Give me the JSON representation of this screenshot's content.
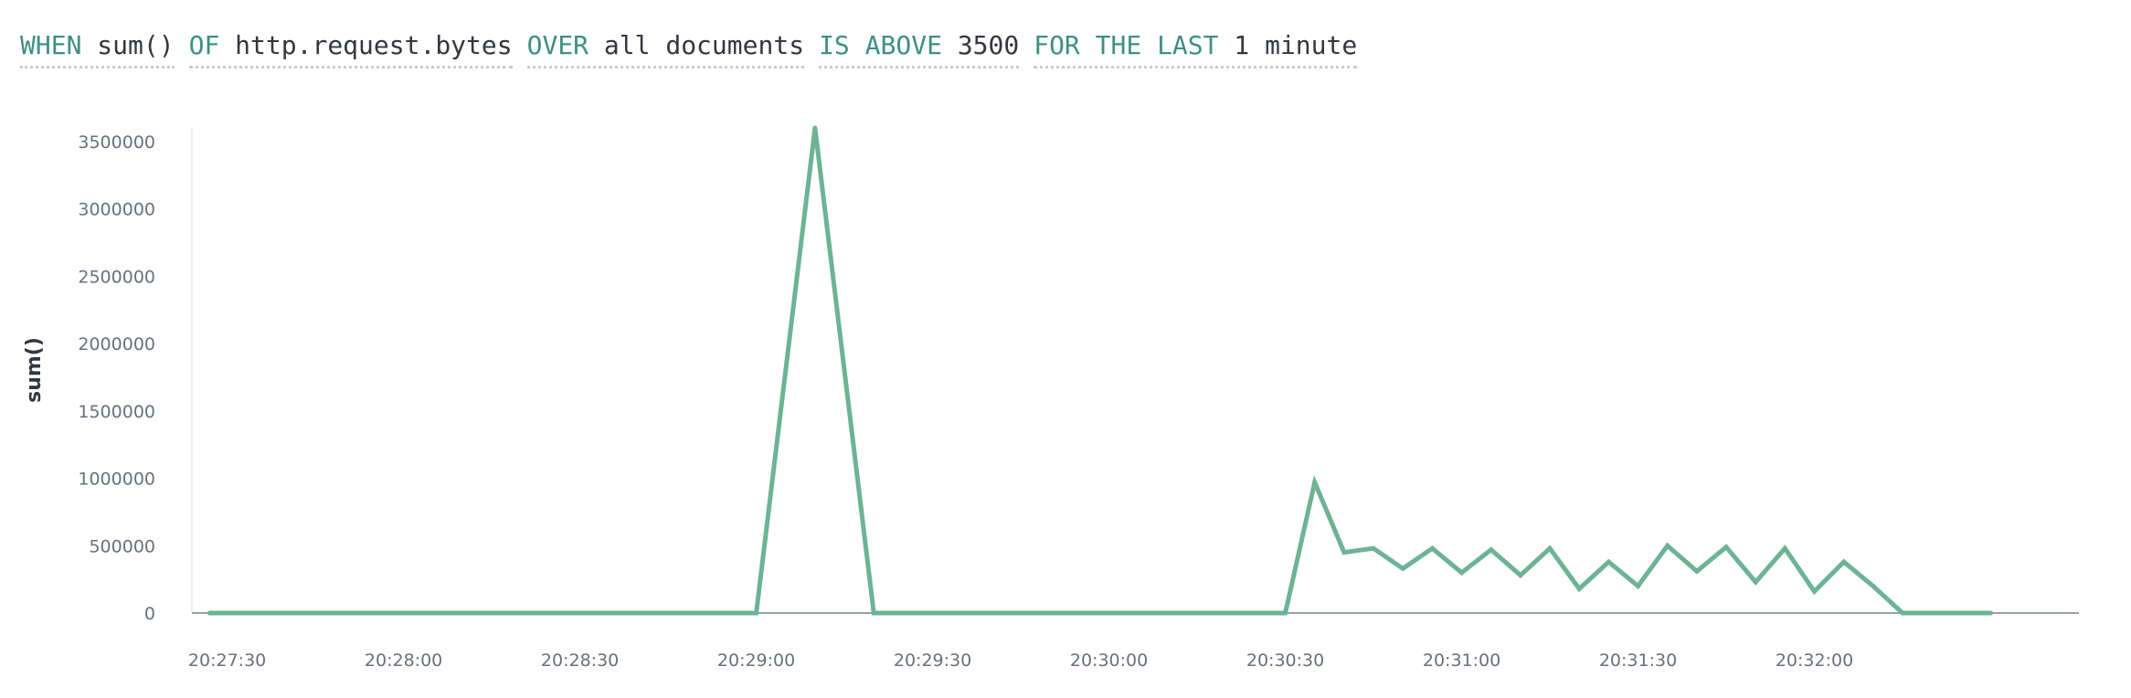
{
  "expression": [
    {
      "name": "when-sum-item",
      "kw": "WHEN",
      "val": "sum()"
    },
    {
      "name": "of-field-item",
      "kw": "OF",
      "val": "http.request.bytes"
    },
    {
      "name": "over-docs-item",
      "kw": "OVER",
      "val": "all documents"
    },
    {
      "name": "threshold-item",
      "kw": "IS ABOVE",
      "val": "3500"
    },
    {
      "name": "time-window-item",
      "kw": "FOR THE LAST",
      "val": "1 minute"
    }
  ],
  "colors": {
    "line": "#6db396",
    "axis": "#9aa0a8",
    "keyword": "#3f8f84",
    "text": "#343741"
  },
  "chart_data": {
    "type": "line",
    "ylabel": "sum()",
    "ylim": [
      0,
      3600000
    ],
    "yticks": [
      0,
      500000,
      1000000,
      1500000,
      2000000,
      2500000,
      3000000,
      3500000
    ],
    "ytick_labels": [
      "0",
      "500000",
      "1000000",
      "1500000",
      "2000000",
      "2500000",
      "3000000",
      "3500000"
    ],
    "xticks": [
      "20:27:30",
      "20:28:00",
      "20:28:30",
      "20:29:00",
      "20:29:30",
      "20:30:00",
      "20:30:30",
      "20:31:00",
      "20:31:30",
      "20:32:00"
    ],
    "xlim": [
      "20:27:24",
      "20:32:45"
    ],
    "series": [
      {
        "x": [
          "20:27:27",
          "20:29:00",
          "20:29:10",
          "20:29:20",
          "20:30:30",
          "20:30:35",
          "20:30:40",
          "20:30:45",
          "20:30:50",
          "20:30:55",
          "20:31:00",
          "20:31:05",
          "20:31:10",
          "20:31:15",
          "20:31:20",
          "20:31:25",
          "20:31:30",
          "20:31:35",
          "20:31:40",
          "20:31:45",
          "20:31:50",
          "20:31:55",
          "20:32:00",
          "20:32:05",
          "20:32:10",
          "20:32:15",
          "20:32:20",
          "20:32:25",
          "20:32:30"
        ],
        "y": [
          0,
          0,
          3600000,
          0,
          0,
          970000,
          450000,
          480000,
          330000,
          480000,
          300000,
          470000,
          280000,
          480000,
          180000,
          380000,
          200000,
          500000,
          310000,
          490000,
          230000,
          480000,
          160000,
          380000,
          200000,
          0,
          0,
          0,
          0
        ]
      }
    ]
  }
}
